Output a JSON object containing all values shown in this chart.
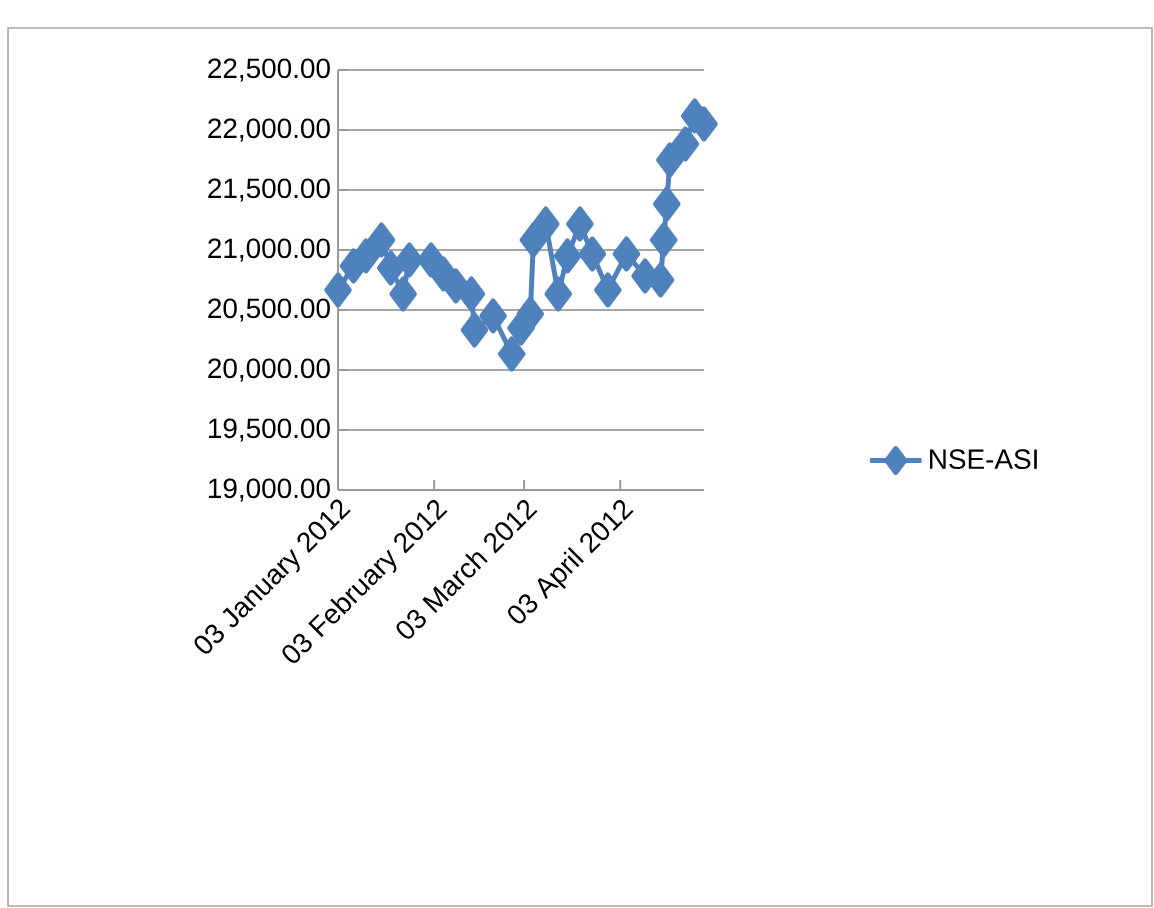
{
  "chart_data": {
    "type": "line",
    "x": [
      "2012-01-03",
      "2012-01-08",
      "2012-01-12",
      "2012-01-17",
      "2012-01-20",
      "2012-01-24",
      "2012-01-26",
      "2012-02-02",
      "2012-02-06",
      "2012-02-10",
      "2012-02-15",
      "2012-02-16",
      "2012-02-22",
      "2012-02-28",
      "2012-03-02",
      "2012-03-05",
      "2012-03-06",
      "2012-03-10",
      "2012-03-14",
      "2012-03-17",
      "2012-03-21",
      "2012-03-25",
      "2012-03-30",
      "2012-04-05",
      "2012-04-11",
      "2012-04-16",
      "2012-04-17",
      "2012-04-18",
      "2012-04-19",
      "2012-04-24",
      "2012-04-27",
      "2012-04-30"
    ],
    "series": [
      {
        "name": "NSE-ASI",
        "color": "#4f81bd",
        "values": [
          20667,
          20867,
          20950,
          21083,
          20850,
          20633,
          20917,
          20917,
          20800,
          20700,
          20633,
          20333,
          20450,
          20133,
          20350,
          20467,
          21083,
          21217,
          20633,
          20950,
          21217,
          20967,
          20667,
          20967,
          20783,
          20750,
          21083,
          21383,
          21750,
          21883,
          22117,
          22050
        ]
      }
    ],
    "xlim": [
      "2012-01-03",
      "2012-04-30"
    ],
    "xticks": [
      {
        "value": "2012-01-03",
        "label": "03 January 2012"
      },
      {
        "value": "2012-02-03",
        "label": "03 February 2012"
      },
      {
        "value": "2012-03-03",
        "label": "03 March 2012"
      },
      {
        "value": "2012-04-03",
        "label": "03 April 2012"
      }
    ],
    "ylim": [
      19000,
      22500
    ],
    "yticks": [
      {
        "value": 19000,
        "label": "19,000.00"
      },
      {
        "value": 19500,
        "label": "19,500.00"
      },
      {
        "value": 20000,
        "label": "20,000.00"
      },
      {
        "value": 20500,
        "label": "20,500.00"
      },
      {
        "value": 21000,
        "label": "21,000.00"
      },
      {
        "value": 21500,
        "label": "21,500.00"
      },
      {
        "value": 22000,
        "label": "22,000.00"
      },
      {
        "value": 22500,
        "label": "22,500.00"
      }
    ],
    "grid": "y",
    "legend": "right",
    "marker": "diamond",
    "line_style": "solid"
  }
}
